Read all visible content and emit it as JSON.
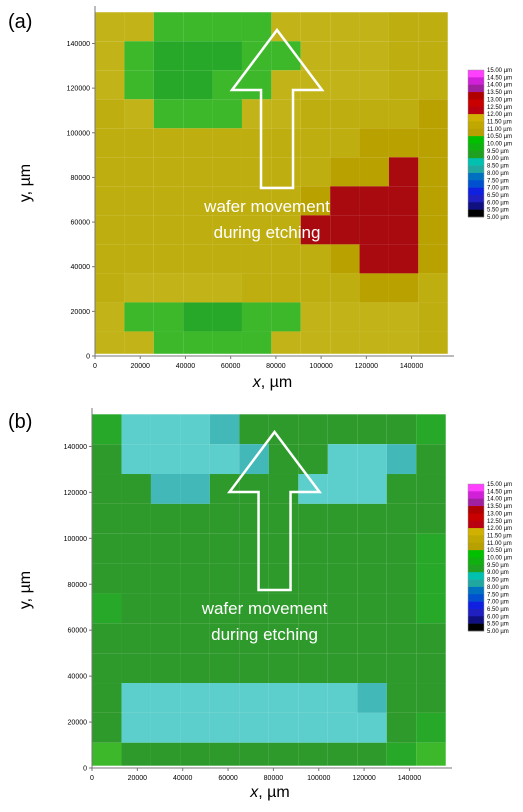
{
  "chart_data": [
    {
      "type": "heatmap",
      "panel_label": "(a)",
      "xlabel_var": "x",
      "xlabel_unit": ", µm",
      "ylabel": "y, µm",
      "xticks": [
        0,
        20000,
        40000,
        60000,
        80000,
        100000,
        120000,
        140000
      ],
      "yticks": [
        0,
        20000,
        40000,
        60000,
        80000,
        100000,
        120000,
        140000
      ],
      "xlim": [
        0,
        157000
      ],
      "ylim": [
        0,
        155000
      ],
      "annotation_line1": "wafer movement",
      "annotation_line2": "during etching",
      "grid": {
        "cols": 12,
        "rows": 12,
        "cell_um": 13000,
        "values": [
          [
            10.25,
            10.25,
            9.75,
            9.75,
            9.75,
            9.75,
            10.25,
            10.25,
            10.25,
            10.25,
            10.75,
            10.75
          ],
          [
            10.25,
            9.75,
            9.25,
            9.25,
            9.25,
            9.75,
            9.75,
            10.25,
            10.25,
            10.25,
            10.75,
            10.75
          ],
          [
            10.25,
            9.75,
            9.25,
            9.25,
            9.75,
            9.75,
            10.25,
            10.25,
            10.25,
            10.25,
            10.75,
            10.75
          ],
          [
            10.75,
            10.25,
            9.75,
            9.75,
            9.75,
            10.25,
            10.25,
            10.75,
            10.75,
            10.75,
            10.75,
            11.25
          ],
          [
            10.75,
            10.75,
            10.75,
            10.75,
            10.75,
            10.75,
            10.75,
            10.75,
            10.75,
            11.25,
            11.25,
            11.25
          ],
          [
            10.75,
            10.75,
            10.75,
            10.75,
            10.75,
            10.75,
            10.75,
            10.75,
            11.25,
            11.75,
            12.25,
            11.25
          ],
          [
            10.75,
            10.75,
            10.75,
            10.75,
            10.75,
            10.75,
            10.75,
            11.25,
            12.25,
            12.25,
            12.25,
            11.75
          ],
          [
            10.75,
            10.75,
            10.75,
            10.75,
            10.75,
            10.75,
            10.75,
            12.25,
            12.25,
            12.25,
            12.25,
            11.75
          ],
          [
            10.75,
            10.75,
            10.75,
            10.75,
            10.75,
            10.75,
            10.75,
            10.75,
            11.25,
            12.25,
            12.25,
            11.75
          ],
          [
            10.75,
            10.25,
            10.25,
            10.25,
            10.25,
            10.75,
            10.75,
            10.75,
            10.75,
            11.25,
            11.25,
            10.75
          ],
          [
            10.25,
            9.75,
            9.75,
            9.25,
            9.25,
            9.75,
            9.75,
            10.25,
            10.25,
            10.25,
            10.25,
            10.75
          ],
          [
            10.25,
            10.25,
            9.75,
            9.75,
            9.75,
            9.75,
            10.25,
            10.25,
            10.25,
            10.25,
            10.25,
            10.75
          ]
        ]
      },
      "colorbar": {
        "labels": [
          "15.00 µm",
          "14.50 µm",
          "14.00 µm",
          "13.50 µm",
          "13.00 µm",
          "12.50 µm",
          "12.00 µm",
          "11.50 µm",
          "11.00 µm",
          "10.50 µm",
          "10.00 µm",
          "9.50 µm",
          "9.00 µm",
          "8.50 µm",
          "8.00 µm",
          "7.50 µm",
          "7.00 µm",
          "6.50 µm",
          "6.00 µm",
          "5.50 µm",
          "5.00 µm"
        ],
        "colors": [
          "#ff40ff",
          "#d020d8",
          "#a020a0",
          "#b00000",
          "#c80000",
          "#b80010",
          "#d0b000",
          "#c0a800",
          "#b8a000",
          "#00c000",
          "#10b010",
          "#20a020",
          "#00c0b0",
          "#20a8a0",
          "#0070c0",
          "#0050d0",
          "#1020e0",
          "#2020c0",
          "#101080",
          "#000000"
        ]
      }
    },
    {
      "type": "heatmap",
      "panel_label": "(b)",
      "xlabel_var": "x",
      "xlabel_unit": ", µm",
      "ylabel": "y, µm",
      "xticks": [
        0,
        20000,
        40000,
        60000,
        80000,
        100000,
        120000,
        140000
      ],
      "yticks": [
        0,
        20000,
        40000,
        60000,
        80000,
        100000,
        120000,
        140000
      ],
      "xlim": [
        0,
        157000
      ],
      "ylim": [
        0,
        155000
      ],
      "annotation_line1": "wafer movement",
      "annotation_line2": "during etching",
      "grid": {
        "cols": 12,
        "rows": 12,
        "cell_um": 13000,
        "values": [
          [
            9.25,
            7.75,
            7.75,
            7.75,
            8.25,
            8.75,
            8.75,
            8.75,
            8.75,
            8.75,
            8.75,
            9.25
          ],
          [
            8.75,
            7.75,
            7.75,
            7.75,
            7.75,
            8.25,
            8.75,
            8.75,
            7.75,
            7.75,
            8.25,
            8.75
          ],
          [
            8.75,
            8.75,
            8.25,
            8.25,
            8.75,
            8.75,
            8.75,
            7.75,
            7.75,
            7.75,
            8.75,
            8.75
          ],
          [
            8.75,
            8.75,
            8.75,
            8.75,
            8.75,
            8.75,
            8.75,
            8.75,
            8.75,
            8.75,
            8.75,
            8.75
          ],
          [
            8.75,
            8.75,
            8.75,
            8.75,
            8.75,
            8.75,
            8.75,
            8.75,
            8.75,
            8.75,
            8.75,
            9.25
          ],
          [
            8.75,
            8.75,
            8.75,
            8.75,
            8.75,
            8.75,
            8.75,
            8.75,
            8.75,
            8.75,
            8.75,
            9.25
          ],
          [
            9.25,
            8.75,
            8.75,
            8.75,
            8.75,
            8.75,
            8.75,
            8.75,
            8.75,
            8.75,
            8.75,
            9.25
          ],
          [
            8.75,
            8.75,
            8.75,
            8.75,
            8.75,
            8.75,
            8.75,
            8.75,
            8.75,
            8.75,
            8.75,
            8.75
          ],
          [
            8.75,
            8.75,
            8.75,
            8.75,
            8.75,
            8.75,
            8.75,
            8.75,
            8.75,
            8.75,
            8.75,
            8.75
          ],
          [
            8.75,
            7.75,
            7.75,
            7.75,
            7.75,
            7.75,
            7.75,
            7.75,
            7.75,
            8.25,
            8.75,
            8.75
          ],
          [
            8.75,
            7.75,
            7.75,
            7.75,
            7.75,
            7.75,
            7.75,
            7.75,
            7.75,
            7.75,
            8.75,
            9.25
          ],
          [
            9.75,
            8.75,
            8.75,
            8.75,
            8.75,
            8.75,
            8.75,
            8.75,
            8.75,
            8.75,
            9.25,
            9.75
          ]
        ]
      },
      "colorbar": {
        "labels": [
          "15.00 µm",
          "14.50 µm",
          "14.00 µm",
          "13.50 µm",
          "13.00 µm",
          "12.50 µm",
          "12.00 µm",
          "11.50 µm",
          "11.00 µm",
          "10.50 µm",
          "10.00 µm",
          "9.50 µm",
          "9.00 µm",
          "8.50 µm",
          "8.00 µm",
          "7.50 µm",
          "7.00 µm",
          "6.50 µm",
          "6.00 µm",
          "5.50 µm",
          "5.00 µm"
        ],
        "colors": [
          "#ff40ff",
          "#d020d8",
          "#a020a0",
          "#b00000",
          "#c80000",
          "#b80010",
          "#d0b000",
          "#c0a800",
          "#b8a000",
          "#00c000",
          "#10b010",
          "#20a020",
          "#00c0b0",
          "#20a8a0",
          "#0070c0",
          "#0050d0",
          "#1020e0",
          "#2020c0",
          "#101080",
          "#000000"
        ]
      }
    }
  ]
}
